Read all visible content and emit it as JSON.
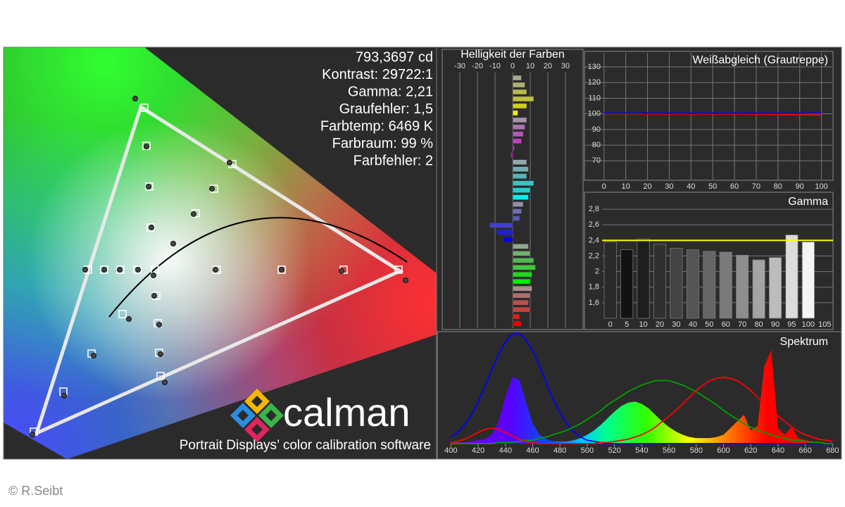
{
  "cie": {
    "stats": [
      "793,3697 cd",
      "Kontrast: 29722:1",
      "Gamma: 2,21",
      "Graufehler: 1,5",
      "Farbtemp: 6469 K",
      "Farbraum: 99 %",
      "Farbfehler: 2"
    ],
    "logo": "calman",
    "tagline": "Portrait Displays’ color calibration software"
  },
  "copyright": "© R.Seibt",
  "chart_data": [
    {
      "type": "hbar",
      "title": "Helligkeit der Farben",
      "values": [
        5,
        7,
        8,
        12,
        8,
        3,
        8,
        7,
        6,
        5,
        1,
        -1,
        8,
        9,
        8,
        12,
        10,
        9,
        6,
        5,
        4,
        -13,
        -9,
        -5,
        9,
        10,
        12,
        13,
        11,
        10,
        11,
        10,
        9,
        10,
        4,
        5
      ],
      "colors": [
        "#a8a890",
        "#b0b070",
        "#b8b850",
        "#c0c040",
        "#d0d020",
        "#f0f000",
        "#a890a8",
        "#b070b0",
        "#b858b8",
        "#c040c0",
        "#d020d0",
        "#f000f0",
        "#90a8a8",
        "#70b0b0",
        "#50b8b8",
        "#40c0c0",
        "#20d0d0",
        "#00f0f0",
        "#9090a8",
        "#7070b0",
        "#5858b8",
        "#4040c8",
        "#2020d8",
        "#0000f0",
        "#90a890",
        "#70b070",
        "#50b850",
        "#40c840",
        "#20d820",
        "#00f000",
        "#a89090",
        "#b07070",
        "#b85050",
        "#c84040",
        "#d82020",
        "#f00000"
      ],
      "xlim": [
        -40,
        40
      ],
      "xticks": [
        -30,
        -20,
        -10,
        0,
        10,
        20,
        30
      ],
      "grid": true
    },
    {
      "type": "line",
      "title": "Weißabgleich (Grautreppe)",
      "x": [
        0,
        10,
        20,
        30,
        40,
        50,
        60,
        70,
        80,
        90,
        100
      ],
      "series": [
        {
          "color": "#ff0000",
          "values": [
            100.2,
            100.1,
            100,
            100,
            100,
            100,
            99.9,
            99.8,
            99.6,
            99.4,
            99.2
          ]
        },
        {
          "color": "#0000ff",
          "values": [
            100.5,
            100.5,
            100.4,
            100.4,
            100.4,
            100.4,
            100.4,
            100.4,
            100.4,
            100.4,
            100.5
          ]
        }
      ],
      "xlim": [
        -9,
        105
      ],
      "ylim": [
        58,
        139
      ],
      "xticks": [
        0,
        10,
        20,
        30,
        40,
        50,
        60,
        70,
        80,
        90,
        100
      ],
      "yticks": [
        70,
        80,
        90,
        100,
        110,
        120,
        130
      ],
      "grid": true
    },
    {
      "type": "bar",
      "title": "Gamma",
      "categories": [
        "0",
        "5",
        "10",
        "20",
        "30",
        "40",
        "50",
        "60",
        "70",
        "80",
        "90",
        "95",
        "100",
        "105"
      ],
      "values": [
        2.38,
        2.28,
        2.42,
        2.35,
        2.3,
        2.28,
        2.26,
        2.25,
        2.21,
        2.15,
        2.18,
        2.47,
        2.38,
        null
      ],
      "colors": [
        "#2a2a2a",
        "#121212",
        "#1e1e1e",
        "#303030",
        "#444444",
        "#555555",
        "#666666",
        "#7a7a7a",
        "#8e8e8e",
        "#a4a4a4",
        "#bcbcbc",
        "#dcdcdc",
        "#f4f4f4",
        null
      ],
      "target": 2.4,
      "target_color": "#ffff00",
      "ylim": [
        1.4,
        3.0
      ],
      "yticks": [
        {
          "value": 1.6,
          "label": "1,6"
        },
        {
          "value": 1.8,
          "label": "1,8"
        },
        {
          "value": 2.0,
          "label": "2"
        },
        {
          "value": 2.2,
          "label": "2,2"
        },
        {
          "value": 2.4,
          "label": "2,4"
        },
        {
          "value": 2.6,
          "label": "2,6"
        },
        {
          "value": 2.8,
          "label": "2,8"
        }
      ],
      "grid": true
    },
    {
      "type": "line",
      "title": "Spektrum",
      "x": [
        400,
        405,
        410,
        415,
        420,
        425,
        430,
        435,
        440,
        445,
        450,
        455,
        460,
        465,
        470,
        475,
        480,
        485,
        490,
        495,
        500,
        505,
        510,
        515,
        520,
        525,
        530,
        535,
        540,
        545,
        550,
        555,
        560,
        565,
        570,
        575,
        580,
        585,
        590,
        595,
        600,
        605,
        610,
        615,
        620,
        625,
        630,
        635,
        640,
        645,
        650,
        655,
        660,
        665,
        670,
        675,
        680
      ],
      "series": [
        {
          "filled": true,
          "values": [
            0,
            1,
            1,
            2,
            3,
            4,
            8,
            20,
            42,
            60,
            58,
            38,
            18,
            8,
            4,
            2,
            2,
            2,
            3,
            5,
            8,
            12,
            17,
            23,
            29,
            34,
            37,
            38,
            36,
            32,
            26,
            20,
            15,
            11,
            8,
            6,
            5,
            5,
            5,
            6,
            8,
            14,
            20,
            26,
            12,
            16,
            70,
            85,
            14,
            8,
            15,
            5,
            3,
            2,
            1,
            1,
            0
          ]
        },
        {
          "color": "#0000ff",
          "values": [
            6,
            10,
            17,
            26,
            38,
            52,
            67,
            81,
            92,
            99,
            100,
            94,
            84,
            70,
            55,
            40,
            28,
            18,
            11,
            6,
            3,
            2,
            1,
            0,
            0,
            0,
            0,
            0,
            0,
            0,
            0,
            0,
            0,
            0,
            0,
            0,
            0,
            0,
            0,
            0,
            0,
            0,
            0,
            0,
            0,
            0,
            0,
            0,
            0,
            0,
            0,
            0,
            0,
            0,
            0,
            0,
            0
          ]
        },
        {
          "color": "#00a000",
          "values": [
            0,
            0,
            0,
            0,
            0,
            0,
            0,
            1,
            1,
            1,
            2,
            3,
            3,
            5,
            6,
            8,
            10,
            12,
            15,
            18,
            22,
            26,
            30,
            35,
            39,
            43,
            47,
            50,
            53,
            55,
            57,
            57,
            57,
            55,
            53,
            50,
            47,
            43,
            39,
            35,
            30,
            26,
            22,
            18,
            15,
            12,
            10,
            8,
            6,
            5,
            3,
            3,
            2,
            1,
            1,
            0,
            0
          ]
        },
        {
          "color": "#ff0000",
          "values": [
            1,
            2,
            4,
            7,
            10,
            13,
            14,
            13,
            10,
            7,
            4,
            2,
            1,
            0,
            0,
            0,
            0,
            0,
            0,
            0,
            0,
            0,
            1,
            1,
            2,
            3,
            4,
            6,
            8,
            11,
            15,
            20,
            25,
            30,
            36,
            42,
            48,
            53,
            57,
            59,
            60,
            59,
            57,
            53,
            48,
            42,
            36,
            30,
            25,
            20,
            15,
            11,
            8,
            6,
            4,
            3,
            2
          ]
        }
      ],
      "xlim": [
        390,
        685
      ],
      "ylim": [
        0,
        100
      ],
      "xticks": [
        400,
        420,
        440,
        460,
        480,
        500,
        520,
        540,
        560,
        580,
        600,
        620,
        640,
        660,
        680
      ],
      "grid": false
    }
  ]
}
